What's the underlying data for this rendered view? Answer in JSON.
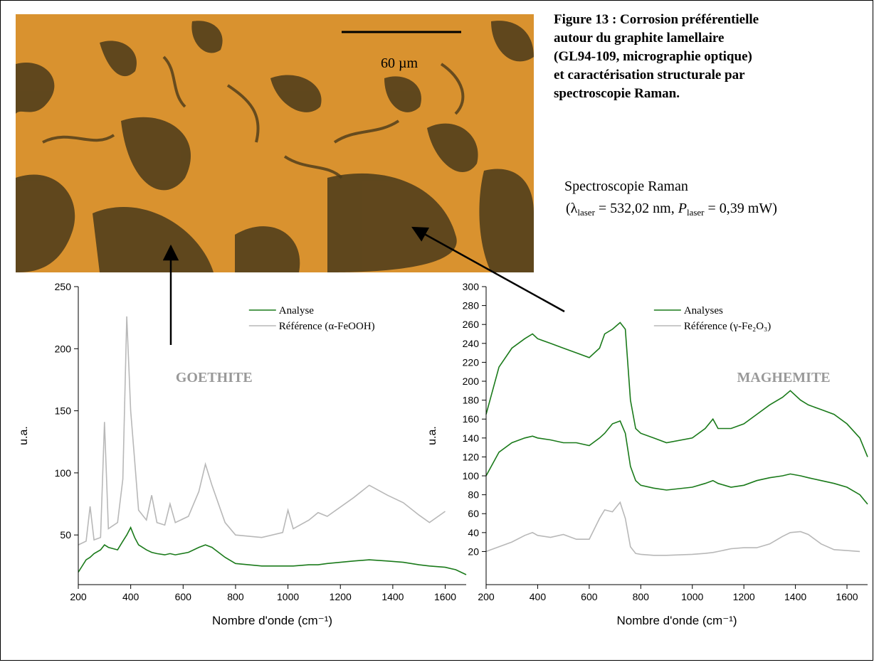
{
  "figure_caption": [
    "Figure 13 : Corrosion préférentielle",
    "autour du graphite lamellaire",
    "(GL94-109, micrographie optique)",
    "et caractérisation structurale par",
    "spectroscopie Raman."
  ],
  "micrograph": {
    "scale_label": "60 µm"
  },
  "raman_conditions": {
    "title": "Spectroscopie Raman",
    "params": [
      "(λ",
      "laser",
      " = 532,02 nm, ",
      "P",
      "laser",
      " = 0,39 mW)"
    ]
  },
  "chart_data": [
    {
      "type": "line",
      "annotation": "GOETHITE",
      "xlabel": "Nombre d'onde (cm⁻¹)",
      "ylabel": "u.a.",
      "legend": "upper center",
      "xlim": [
        200,
        1680
      ],
      "xticks": [
        200,
        400,
        600,
        800,
        1000,
        1200,
        1400,
        1600
      ],
      "ylim": [
        10,
        250
      ],
      "yticks": [
        50,
        100,
        150,
        200,
        250
      ],
      "x": [
        200,
        230,
        245,
        260,
        285,
        300,
        315,
        350,
        370,
        385,
        400,
        415,
        430,
        460,
        480,
        500,
        530,
        550,
        570,
        620,
        660,
        685,
        710,
        760,
        800,
        900,
        980,
        1000,
        1020,
        1080,
        1115,
        1150,
        1250,
        1310,
        1380,
        1440,
        1500,
        1540,
        1600,
        1640,
        1680
      ],
      "series": [
        {
          "name": "Analyse",
          "color": "#1a7a1a",
          "values": [
            20,
            30,
            32,
            35,
            38,
            42,
            40,
            38,
            45,
            50,
            56,
            48,
            42,
            38,
            36,
            35,
            34,
            35,
            34,
            36,
            40,
            42,
            40,
            32,
            27,
            25,
            25,
            25,
            25,
            26,
            26,
            27,
            29,
            30,
            29,
            28,
            26,
            25,
            24,
            22,
            18
          ]
        },
        {
          "name": "Référence (α-FeOOH)",
          "color": "#b8b8b8",
          "values": [
            42,
            45,
            73,
            46,
            48,
            141,
            55,
            60,
            95,
            226,
            150,
            110,
            70,
            62,
            82,
            60,
            58,
            75,
            60,
            65,
            85,
            107,
            90,
            60,
            50,
            48,
            52,
            70,
            55,
            62,
            68,
            65,
            80,
            90,
            82,
            76,
            66,
            60,
            69,
            null,
            null
          ]
        }
      ]
    },
    {
      "type": "line",
      "annotation": "MAGHEMITE",
      "xlabel": "Nombre d'onde (cm⁻¹)",
      "ylabel": "u.a.",
      "legend": "upper center",
      "xlim": [
        200,
        1680
      ],
      "xticks": [
        200,
        400,
        600,
        800,
        1000,
        1200,
        1400,
        1600
      ],
      "ylim": [
        -15,
        300
      ],
      "yticks": [
        20,
        40,
        60,
        80,
        100,
        120,
        140,
        160,
        180,
        200,
        220,
        240,
        260,
        280,
        300
      ],
      "x": [
        200,
        250,
        300,
        350,
        380,
        400,
        450,
        500,
        550,
        600,
        640,
        660,
        690,
        720,
        740,
        760,
        780,
        800,
        850,
        900,
        1000,
        1050,
        1080,
        1100,
        1150,
        1200,
        1250,
        1300,
        1350,
        1380,
        1420,
        1450,
        1500,
        1550,
        1600,
        1650,
        1680
      ],
      "series": [
        {
          "name": "Analyses",
          "color": "#1a7a1a",
          "values": [
            165,
            215,
            235,
            245,
            250,
            245,
            240,
            235,
            230,
            225,
            235,
            250,
            255,
            262,
            255,
            180,
            150,
            145,
            140,
            135,
            140,
            150,
            160,
            150,
            150,
            155,
            165,
            175,
            183,
            190,
            180,
            175,
            170,
            165,
            155,
            140,
            120
          ]
        },
        {
          "color": "#1a7a1a",
          "values": [
            100,
            125,
            135,
            140,
            142,
            140,
            138,
            135,
            135,
            132,
            140,
            145,
            155,
            158,
            145,
            110,
            95,
            90,
            87,
            85,
            88,
            92,
            95,
            92,
            88,
            90,
            95,
            98,
            100,
            102,
            100,
            98,
            95,
            92,
            88,
            80,
            70
          ]
        },
        {
          "name": "Référence (γ-Fe₂O₃)",
          "color": "#b8b8b8",
          "values": [
            20,
            25,
            30,
            37,
            40,
            37,
            35,
            38,
            33,
            33,
            55,
            64,
            62,
            72,
            55,
            25,
            18,
            17,
            16,
            16,
            17,
            18,
            19,
            20,
            23,
            24,
            24,
            28,
            36,
            40,
            41,
            38,
            28,
            22,
            21,
            20,
            null
          ]
        }
      ]
    }
  ]
}
